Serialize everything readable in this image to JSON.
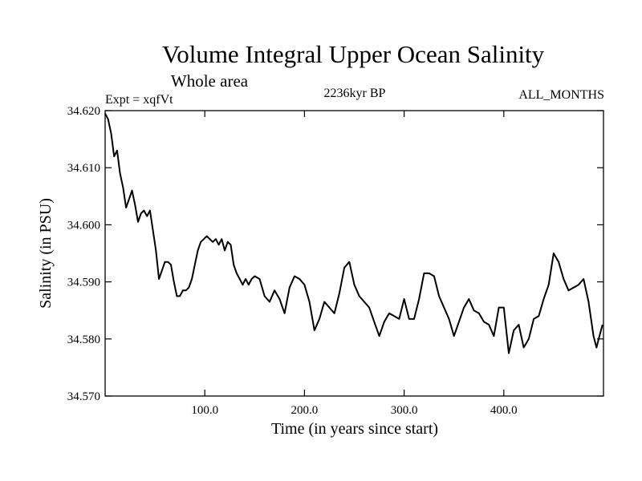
{
  "chart_data": {
    "type": "line",
    "title": "Volume Integral Upper Ocean Salinity",
    "subtitle": "Whole area",
    "experiment_label": "Expt = xqfVt",
    "period_label": "2236kyr BP",
    "months_label": "ALL_MONTHS",
    "xlabel": "Time (in years since start)",
    "ylabel": "Salinity (in PSU)",
    "xlim": [
      0,
      500
    ],
    "ylim": [
      34.57,
      34.62
    ],
    "x_ticks": [
      100,
      200,
      300,
      400
    ],
    "x_tick_labels": [
      "100.0",
      "200.0",
      "300.0",
      "400.0"
    ],
    "y_ticks": [
      34.57,
      34.58,
      34.59,
      34.6,
      34.61,
      34.62
    ],
    "y_tick_labels": [
      "34.570",
      "34.580",
      "34.590",
      "34.600",
      "34.610",
      "34.620"
    ],
    "grid": false,
    "series": [
      {
        "name": "Salinity",
        "color": "#000000",
        "x": [
          0,
          3,
          6,
          9,
          12,
          15,
          18,
          21,
          24,
          27,
          30,
          33,
          36,
          39,
          42,
          45,
          48,
          51,
          54,
          57,
          60,
          63,
          66,
          69,
          72,
          75,
          78,
          81,
          84,
          87,
          90,
          93,
          96,
          99,
          102,
          105,
          108,
          111,
          114,
          117,
          120,
          123,
          126,
          129,
          132,
          135,
          138,
          141,
          144,
          147,
          150,
          155,
          160,
          165,
          170,
          175,
          180,
          185,
          190,
          195,
          200,
          205,
          210,
          215,
          220,
          225,
          230,
          235,
          240,
          245,
          250,
          255,
          260,
          265,
          270,
          275,
          280,
          285,
          290,
          295,
          300,
          305,
          310,
          315,
          320,
          325,
          330,
          335,
          340,
          345,
          350,
          355,
          360,
          365,
          370,
          375,
          380,
          385,
          390,
          395,
          400,
          405,
          410,
          415,
          420,
          425,
          430,
          435,
          440,
          445,
          450,
          455,
          460,
          465,
          470,
          475,
          480,
          485,
          490,
          493,
          496,
          499
        ],
        "values": [
          34.6195,
          34.6185,
          34.616,
          34.612,
          34.613,
          34.609,
          34.6065,
          34.603,
          34.6045,
          34.606,
          34.6035,
          34.6005,
          34.602,
          34.6025,
          34.6015,
          34.6025,
          34.599,
          34.5955,
          34.5905,
          34.592,
          34.5935,
          34.5935,
          34.593,
          34.59,
          34.5875,
          34.5875,
          34.5885,
          34.5885,
          34.589,
          34.5905,
          34.593,
          34.5955,
          34.597,
          34.5975,
          34.598,
          34.5975,
          34.597,
          34.5975,
          34.5965,
          34.5975,
          34.5955,
          34.597,
          34.5965,
          34.593,
          34.5915,
          34.5905,
          34.5895,
          34.5905,
          34.5895,
          34.5905,
          34.591,
          34.5905,
          34.5875,
          34.5865,
          34.5885,
          34.587,
          34.5845,
          34.589,
          34.591,
          34.5905,
          34.5895,
          34.5865,
          34.5815,
          34.5835,
          34.5865,
          34.5855,
          34.5845,
          34.588,
          34.5925,
          34.5935,
          34.5895,
          34.5875,
          34.5865,
          34.5855,
          34.583,
          34.5805,
          34.583,
          34.5845,
          34.584,
          34.5835,
          34.587,
          34.5835,
          34.5835,
          34.587,
          34.5915,
          34.5915,
          34.591,
          34.5875,
          34.5855,
          34.5835,
          34.5805,
          34.583,
          34.5855,
          34.587,
          34.585,
          34.5845,
          34.583,
          34.5825,
          34.5805,
          34.5855,
          34.5855,
          34.5775,
          34.5815,
          34.5825,
          34.5785,
          34.58,
          34.5835,
          34.584,
          34.587,
          34.5895,
          34.595,
          34.5935,
          34.5905,
          34.5885,
          34.589,
          34.5895,
          34.5905,
          34.5865,
          34.5805,
          34.5785,
          34.5805,
          34.5825
        ]
      }
    ]
  }
}
